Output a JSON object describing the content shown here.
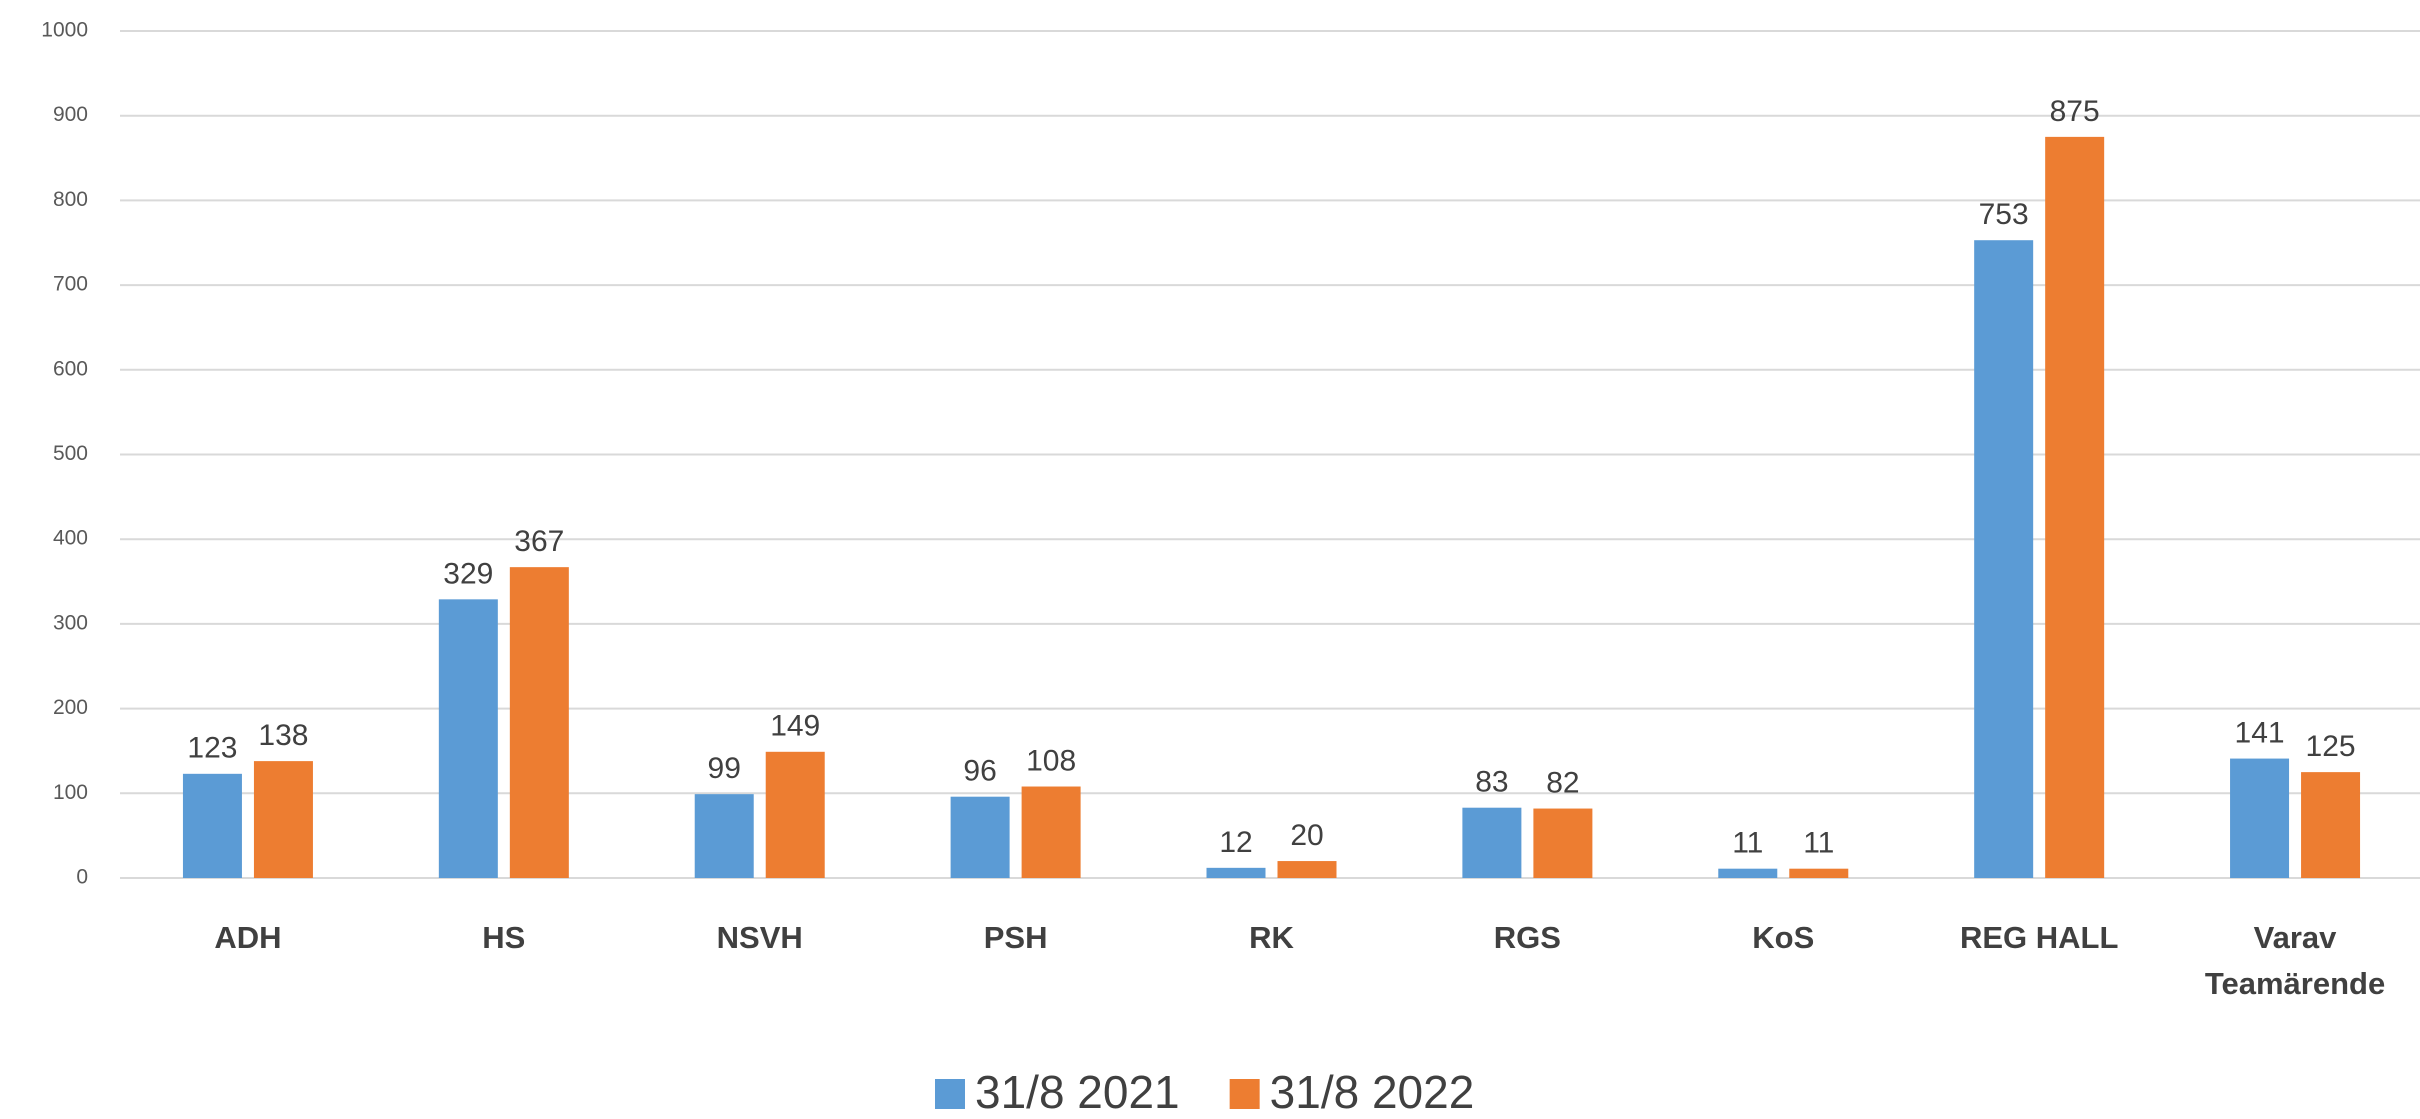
{
  "chart_data": {
    "type": "bar",
    "categories": [
      "ADH",
      "HS",
      "NSVH",
      "PSH",
      "RK",
      "RGS",
      "KoS",
      "REG HALL",
      "Varav Teamärende"
    ],
    "series": [
      {
        "name": "31/8 2021",
        "color": "#5b9bd5",
        "values": [
          123,
          329,
          99,
          96,
          12,
          83,
          11,
          753,
          141
        ]
      },
      {
        "name": "31/8 2022",
        "color": "#ed7d31",
        "values": [
          138,
          367,
          149,
          108,
          20,
          82,
          11,
          875,
          125
        ]
      }
    ],
    "ylim": [
      0,
      1000
    ],
    "yticks": [
      0,
      100,
      200,
      300,
      400,
      500,
      600,
      700,
      800,
      900,
      1000
    ],
    "grid": true,
    "legend": "bottom"
  }
}
